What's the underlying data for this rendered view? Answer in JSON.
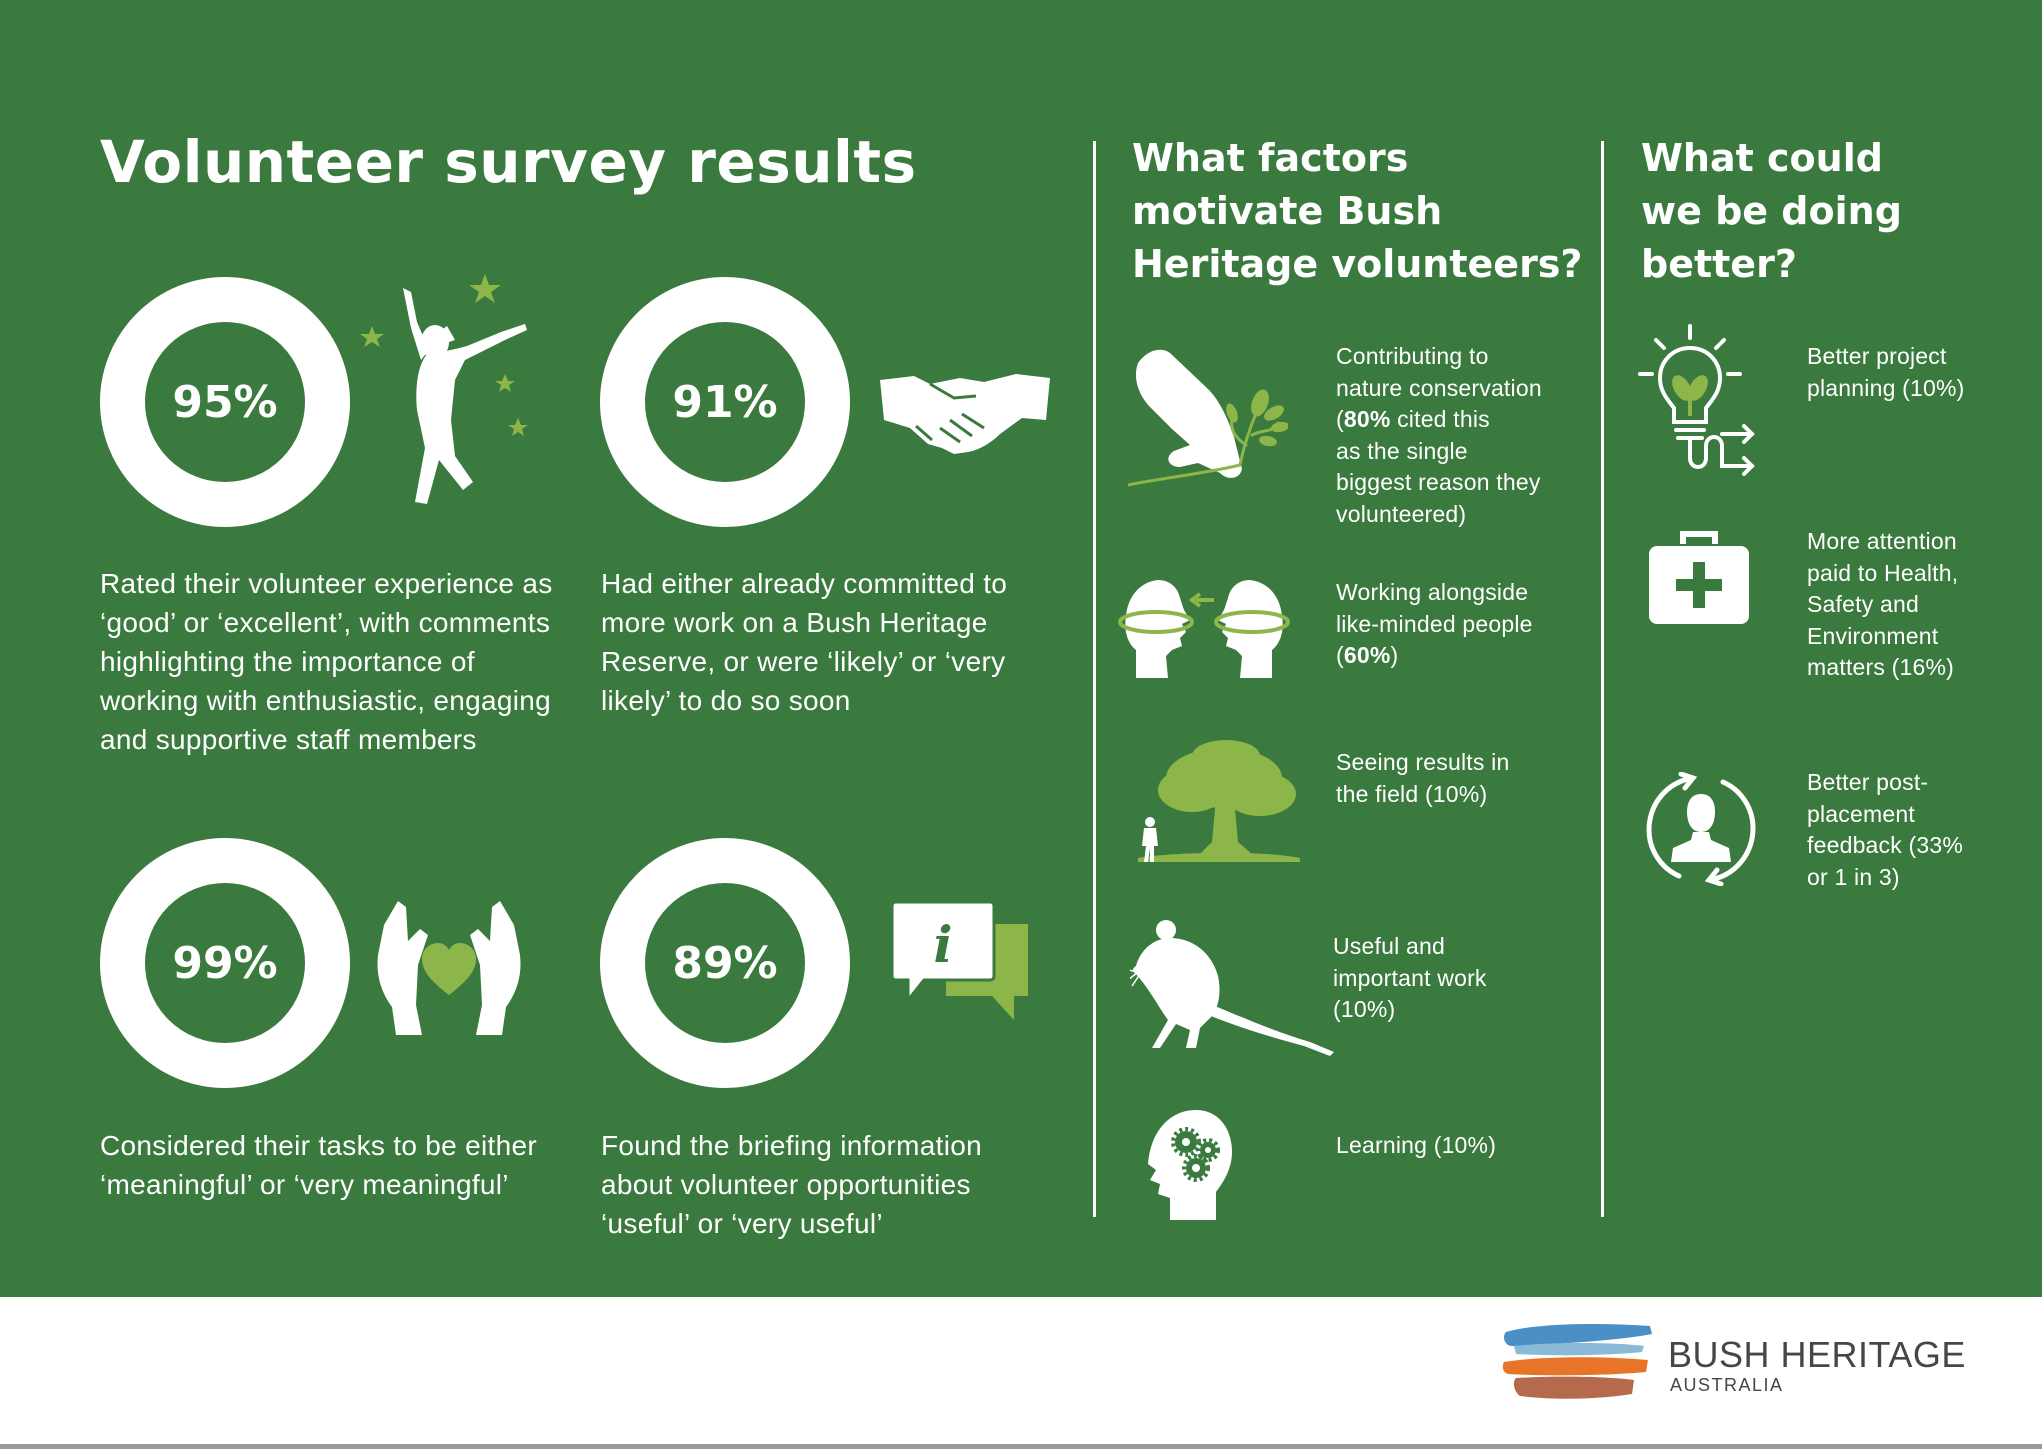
{
  "main_title": "Volunteer survey results",
  "colors": {
    "background": "#3a7a3e",
    "ring": "#8cb54a",
    "ring_rest": "#ffffff",
    "footer_bg": "#ffffff"
  },
  "stats": [
    {
      "percent": "95%",
      "value": 95,
      "description": "Rated their volunteer experience as ‘good’ or ‘excellent’, with comments highlighting the importance of working with enthusiastic, engaging and supportive staff members",
      "icon": "jumping-person-icon"
    },
    {
      "percent": "91%",
      "value": 91,
      "description": "Had either already committed to more work on a Bush Heritage Reserve, or were ‘likely’ or ‘very likely’ to do so soon",
      "icon": "handshake-icon"
    },
    {
      "percent": "99%",
      "value": 99,
      "description": "Considered their tasks to be either ‘meaningful’ or ‘very meaningful’",
      "icon": "hands-heart-icon"
    },
    {
      "percent": "89%",
      "value": 89,
      "description": "Found the briefing information about volunteer opportunities ‘useful’ or ‘very useful’",
      "icon": "info-chat-icon"
    }
  ],
  "motivate": {
    "title_lines": [
      "What factors",
      "motivate Bush",
      "Heritage volunteers?"
    ],
    "items": [
      {
        "lines": [
          "Contributing to",
          "nature conservation",
          "(80% cited this",
          "as the single",
          "biggest reason they",
          "volunteered)"
        ],
        "icon": "hand-plant-icon"
      },
      {
        "lines": [
          "Working alongside",
          "like-minded people",
          "(60%)"
        ],
        "icon": "two-heads-icon"
      },
      {
        "lines": [
          "Seeing results in",
          "the field (10%)"
        ],
        "icon": "tree-hiker-icon"
      },
      {
        "lines": [
          "Useful and",
          "important work",
          "(10%)"
        ],
        "icon": "hopping-mouse-icon"
      },
      {
        "lines": [
          "Learning (10%)"
        ],
        "icon": "head-gears-icon"
      }
    ]
  },
  "better": {
    "title_lines": [
      "What could",
      "we be doing",
      "better?"
    ],
    "items": [
      {
        "lines": [
          "Better project",
          "planning (10%)"
        ],
        "icon": "lightbulb-icon"
      },
      {
        "lines": [
          "More attention",
          "paid to Health,",
          "Safety and",
          "Environment",
          "matters (16%)"
        ],
        "icon": "first-aid-kit-icon"
      },
      {
        "lines": [
          "Better post-",
          "placement",
          "feedback (33%",
          "or 1 in 3)"
        ],
        "icon": "person-cycle-icon"
      }
    ]
  },
  "footer": {
    "brand": "BUSH HERITAGE",
    "sub": "AUSTRALIA"
  }
}
